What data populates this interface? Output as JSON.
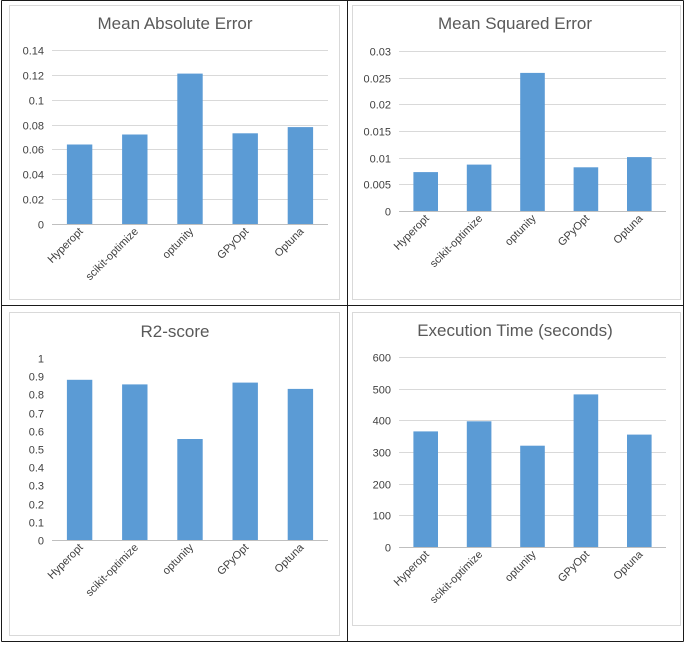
{
  "colors": {
    "bar": "#5b9bd5",
    "grid": "#d9d9d9",
    "text": "#595959"
  },
  "chart_data": [
    {
      "type": "bar",
      "title": "Mean Absolute Error",
      "categories": [
        "Hyperopt",
        "scikit-optimize",
        "optunity",
        "GPyOpt",
        "Optuna"
      ],
      "values": [
        0.064,
        0.072,
        0.121,
        0.073,
        0.078
      ],
      "ylim": [
        0,
        0.14
      ],
      "yticks": [
        "0",
        "0.02",
        "0.04",
        "0.06",
        "0.08",
        "0.1",
        "0.12",
        "0.14"
      ],
      "grid": true
    },
    {
      "type": "bar",
      "title": "Mean Squared Error",
      "categories": [
        "Hyperopt",
        "scikit-optimize",
        "optunity",
        "GPyOpt",
        "Optuna"
      ],
      "values": [
        0.0073,
        0.0087,
        0.0259,
        0.0082,
        0.0101
      ],
      "ylim": [
        0,
        0.03
      ],
      "yticks": [
        "0",
        "0.005",
        "0.01",
        "0.015",
        "0.02",
        "0.025",
        "0.03"
      ],
      "grid": true
    },
    {
      "type": "bar",
      "title": "R2-score",
      "categories": [
        "Hyperopt",
        "scikit-optimize",
        "optunity",
        "GPyOpt",
        "Optuna"
      ],
      "values": [
        0.88,
        0.855,
        0.555,
        0.865,
        0.83
      ],
      "ylim": [
        0,
        1
      ],
      "yticks": [
        "0",
        "0.1",
        "0.2",
        "0.3",
        "0.4",
        "0.5",
        "0.6",
        "0.7",
        "0.8",
        "0.9",
        "1"
      ],
      "grid": false
    },
    {
      "type": "bar",
      "title": "Execution Time (seconds)",
      "categories": [
        "Hyperopt",
        "scikit-optimize",
        "optunity",
        "GPyOpt",
        "Optuna"
      ],
      "values": [
        365,
        397,
        320,
        482,
        355
      ],
      "ylim": [
        0,
        600
      ],
      "yticks": [
        "0",
        "100",
        "200",
        "300",
        "400",
        "500",
        "600"
      ],
      "grid": true
    }
  ]
}
